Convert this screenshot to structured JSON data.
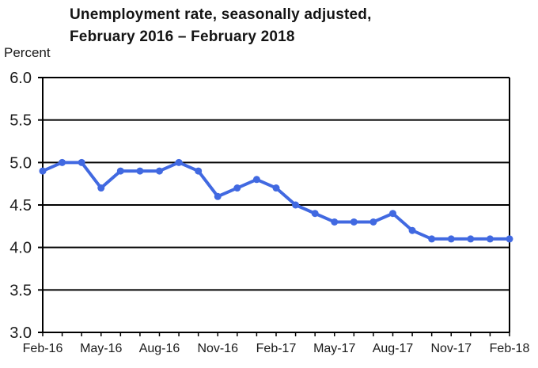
{
  "header": {
    "title_line1": "Unemployment rate, seasonally adjusted,",
    "title_line2": "February 2016 – February 2018",
    "y_axis_unit": "Percent"
  },
  "chart_data": {
    "type": "line",
    "title": "Unemployment rate, seasonally adjusted, February 2016 – February 2018",
    "ylabel": "Percent",
    "xlabel": "",
    "ylim": [
      3.0,
      6.0
    ],
    "ytick_labels": [
      "6.0",
      "5.5",
      "5.0",
      "4.5",
      "4.0",
      "3.5",
      "3.0"
    ],
    "x": [
      "Feb-16",
      "Mar-16",
      "Apr-16",
      "May-16",
      "Jun-16",
      "Jul-16",
      "Aug-16",
      "Sep-16",
      "Oct-16",
      "Nov-16",
      "Dec-16",
      "Jan-17",
      "Feb-17",
      "Mar-17",
      "Apr-17",
      "May-17",
      "Jun-17",
      "Jul-17",
      "Aug-17",
      "Sep-17",
      "Oct-17",
      "Nov-17",
      "Dec-17",
      "Jan-18",
      "Feb-18"
    ],
    "xtick_labels": [
      "Feb-16",
      "May-16",
      "Aug-16",
      "Nov-16",
      "Feb-17",
      "May-17",
      "Aug-17",
      "Nov-17",
      "Feb-18"
    ],
    "series": [
      {
        "name": "Unemployment rate",
        "values": [
          4.9,
          5.0,
          5.0,
          4.7,
          4.9,
          4.9,
          4.9,
          5.0,
          4.9,
          4.6,
          4.7,
          4.8,
          4.7,
          4.5,
          4.4,
          4.3,
          4.3,
          4.3,
          4.4,
          4.2,
          4.1,
          4.1,
          4.1,
          4.1,
          4.1
        ]
      }
    ],
    "grid": true,
    "legend_position": "none",
    "line_color": "#4169E1",
    "axis_color": "#000000",
    "text_color": "#1a1a1a"
  }
}
